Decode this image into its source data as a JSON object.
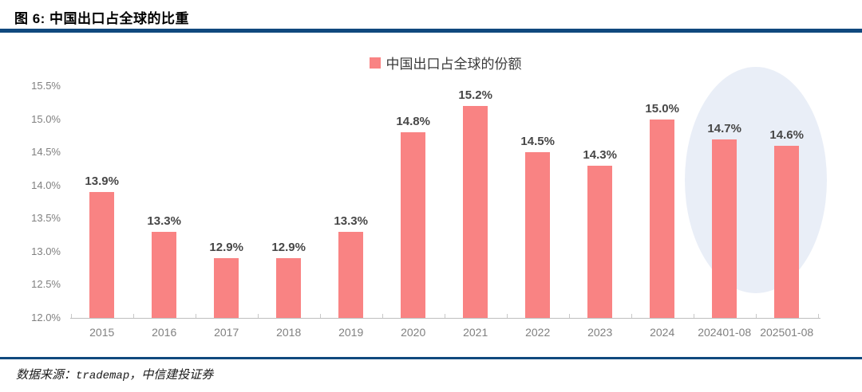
{
  "header": {
    "title": "图 6: 中国出口占全球的比重"
  },
  "footer": {
    "source_prefix": "数据来源：",
    "source_mono": "trademap",
    "source_suffix": "，中信建投证券"
  },
  "colors": {
    "bar": "#F98383",
    "rule": "#10497E",
    "data_label": "#474747",
    "axis_label": "#808080",
    "axis_line": "#BFBFBF",
    "highlight_ellipse": "#E9EEF7"
  },
  "chart_data": {
    "type": "bar",
    "legend": "中国出口占全球的份额",
    "legend_position": "top-center",
    "categories": [
      "2015",
      "2016",
      "2017",
      "2018",
      "2019",
      "2020",
      "2021",
      "2022",
      "2023",
      "2024",
      "202401-08",
      "202501-08"
    ],
    "values": [
      13.9,
      13.3,
      12.9,
      12.9,
      13.3,
      14.8,
      15.2,
      14.5,
      14.3,
      15.0,
      14.7,
      14.6
    ],
    "data_labels": [
      "13.9%",
      "13.3%",
      "12.9%",
      "12.9%",
      "13.3%",
      "14.8%",
      "15.2%",
      "14.5%",
      "14.3%",
      "15.0%",
      "14.7%",
      "14.6%"
    ],
    "ylim": [
      12.0,
      15.5
    ],
    "ytick_step": 0.5,
    "yticks": [
      "12.0%",
      "12.5%",
      "13.0%",
      "13.5%",
      "14.0%",
      "14.5%",
      "15.0%",
      "15.5%"
    ],
    "grid": false,
    "highlight": {
      "shape": "ellipse",
      "from_category": "202401-08",
      "to_category": "202501-08"
    }
  }
}
